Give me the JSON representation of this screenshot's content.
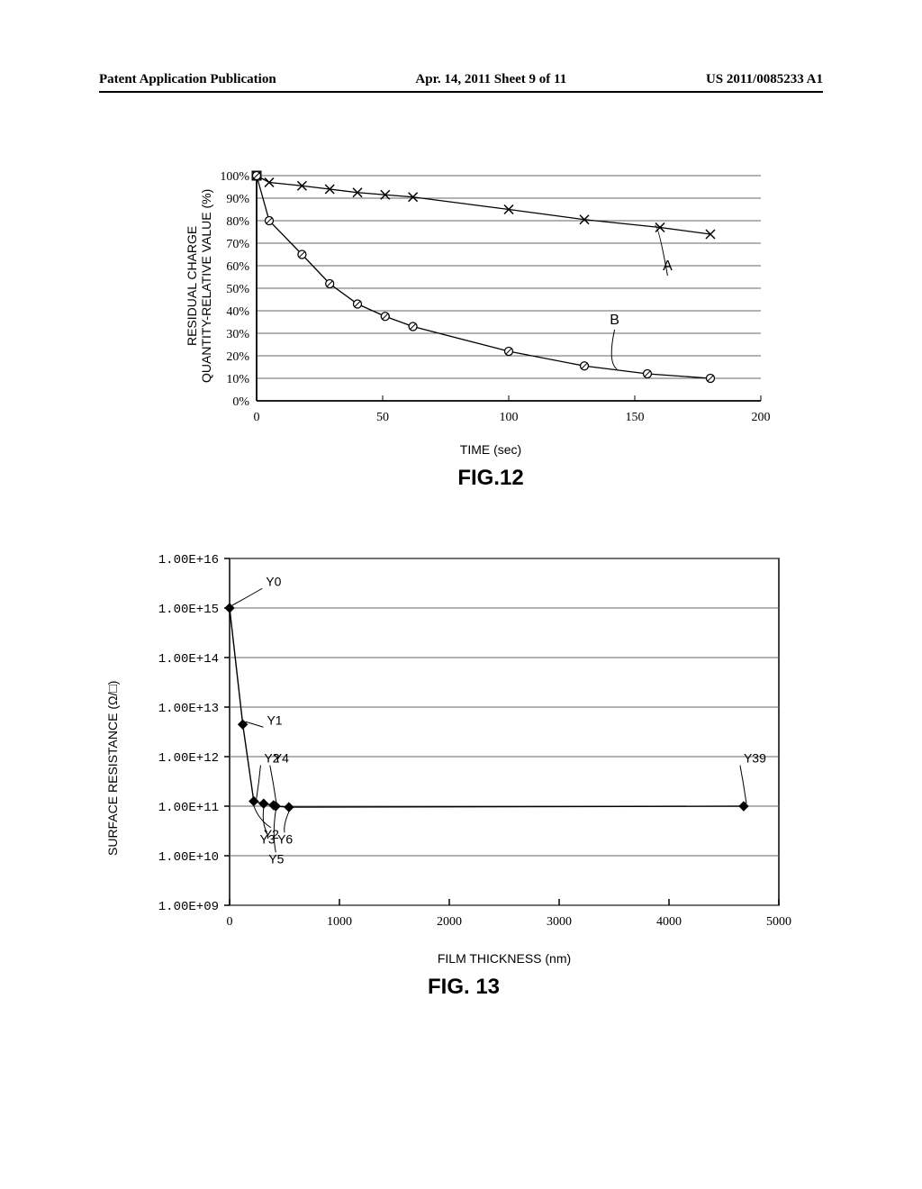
{
  "header": {
    "left": "Patent Application Publication",
    "center": "Apr. 14, 2011  Sheet 9 of 11",
    "right": "US 2011/0085233 A1"
  },
  "fig12": {
    "title": "FIG.12",
    "ylabel_line1": "RESIDUAL CHARGE",
    "ylabel_line2": "QUANTITY-RELATIVE VALUE (%)",
    "xlabel": "TIME (sec)",
    "xlim": [
      0,
      200
    ],
    "ylim": [
      0,
      100
    ],
    "xtick_step": 50,
    "ytick_step": 10,
    "ytick_labels": [
      "0%",
      "10%",
      "20%",
      "30%",
      "40%",
      "50%",
      "60%",
      "70%",
      "80%",
      "90%",
      "100%"
    ],
    "grid_color": "#666666",
    "bg_color": "#ffffff",
    "series": {
      "A": {
        "marker": "x",
        "x": [
          0,
          5,
          18,
          29,
          40,
          51,
          62,
          100,
          130,
          160,
          180
        ],
        "y": [
          100,
          97,
          95.5,
          94,
          92.5,
          91.5,
          90.5,
          85,
          80.5,
          77,
          74
        ],
        "label_x": 163,
        "label_y": 58
      },
      "B": {
        "marker": "o",
        "x": [
          0,
          5,
          18,
          29,
          40,
          51,
          62,
          100,
          130,
          155,
          180
        ],
        "y": [
          100,
          80,
          65,
          52,
          43,
          37.5,
          33,
          22,
          15.5,
          12,
          10
        ],
        "label_x": 142,
        "label_y": 34
      }
    }
  },
  "fig13": {
    "title": "FIG. 13",
    "ylabel": "SURFACE RESISTANCE (Ω/□)",
    "xlabel": "FILM THICKNESS (nm)",
    "xlim": [
      0,
      5000
    ],
    "xtick_step": 1000,
    "ylog_min": 9,
    "ylog_max": 16,
    "ytick_labels": [
      "1.00E+09",
      "1.00E+10",
      "1.00E+11",
      "1.00E+12",
      "1.00E+13",
      "1.00E+14",
      "1.00E+15",
      "1.00E+16"
    ],
    "grid_color": "#666666",
    "bg_color": "#ffffff",
    "points": [
      {
        "name": "Y0",
        "x": 0,
        "ylog": 15.0,
        "lx": 330,
        "ly": 15.45,
        "leader": true
      },
      {
        "name": "Y1",
        "x": 120,
        "ylog": 12.65,
        "lx": 340,
        "ly": 12.65,
        "leader": true
      },
      {
        "name": "Y2",
        "x": 220,
        "ylog": 11.1,
        "lx": 315,
        "ly": 11.88,
        "leader": true,
        "lbelow": true,
        "lbx": 310,
        "lby": 10.35
      },
      {
        "name": "Y3",
        "x": 310,
        "ylog": 11.05,
        "lx": 0,
        "ly": 0,
        "leader": false,
        "lbelow": true,
        "lbx": 275,
        "lby": 10.25
      },
      {
        "name": "Y4",
        "x": 400,
        "ylog": 11.02,
        "lx": 400,
        "ly": 11.88,
        "leader": true
      },
      {
        "name": "Y5",
        "x": 420,
        "ylog": 11.0,
        "lx": 0,
        "ly": 0,
        "leader": false,
        "lbelow": true,
        "lbx": 355,
        "lby": 9.85
      },
      {
        "name": "Y6",
        "x": 540,
        "ylog": 10.98,
        "lx": 0,
        "ly": 0,
        "leader": false,
        "lbelow": true,
        "lbx": 435,
        "lby": 10.25
      },
      {
        "name": "Y39",
        "x": 4680,
        "ylog": 11.0,
        "lx": 4680,
        "ly": 11.88,
        "leader": true,
        "lright": true
      }
    ]
  }
}
